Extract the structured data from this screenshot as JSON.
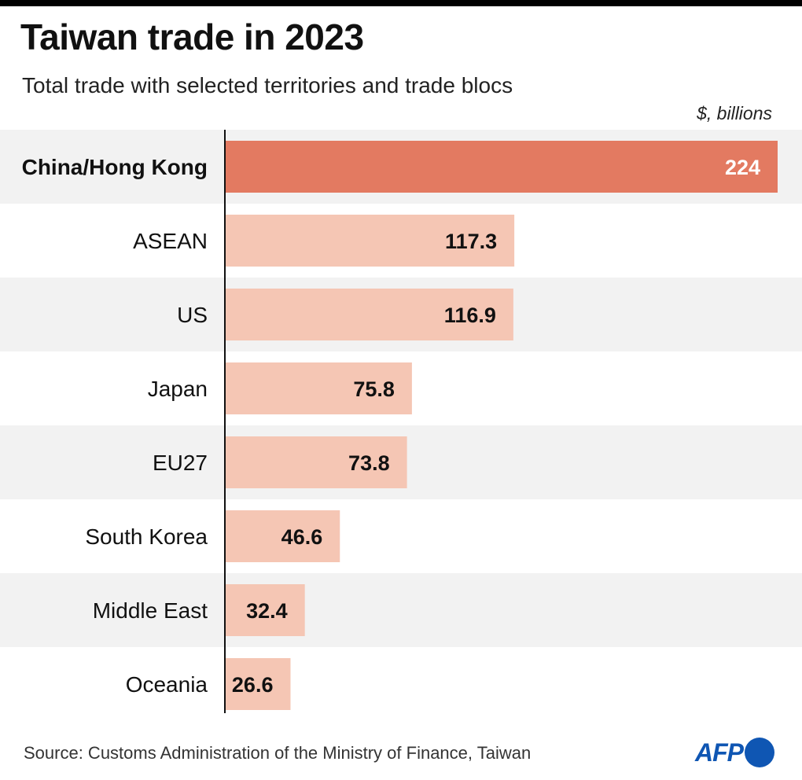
{
  "title": "Taiwan trade in 2023",
  "subtitle": "Total trade with selected territories and trade blocs",
  "unit": "$, billions",
  "source": "Source: Customs Administration of the Ministry of Finance, Taiwan",
  "logo": "AFP",
  "colors": {
    "highlight_bar": "#e37a61",
    "bar": "#f5c6b4",
    "band": "#f2f2f2",
    "axis": "#111111"
  },
  "chart_data": {
    "type": "bar",
    "orientation": "horizontal",
    "categories": [
      "China/Hong Kong",
      "ASEAN",
      "US",
      "Japan",
      "EU27",
      "South Korea",
      "Middle East",
      "Oceania"
    ],
    "values": [
      224,
      117.3,
      116.9,
      75.8,
      73.8,
      46.6,
      32.4,
      26.6
    ],
    "value_labels": [
      "224",
      "117.3",
      "116.9",
      "75.8",
      "73.8",
      "46.6",
      "32.4",
      "26.6"
    ],
    "highlight": "China/Hong Kong",
    "title": "Taiwan trade in 2023",
    "subtitle": "Total trade with selected territories and trade blocs",
    "unit": "$, billions",
    "xlim": [
      0,
      224
    ],
    "grid": false
  }
}
